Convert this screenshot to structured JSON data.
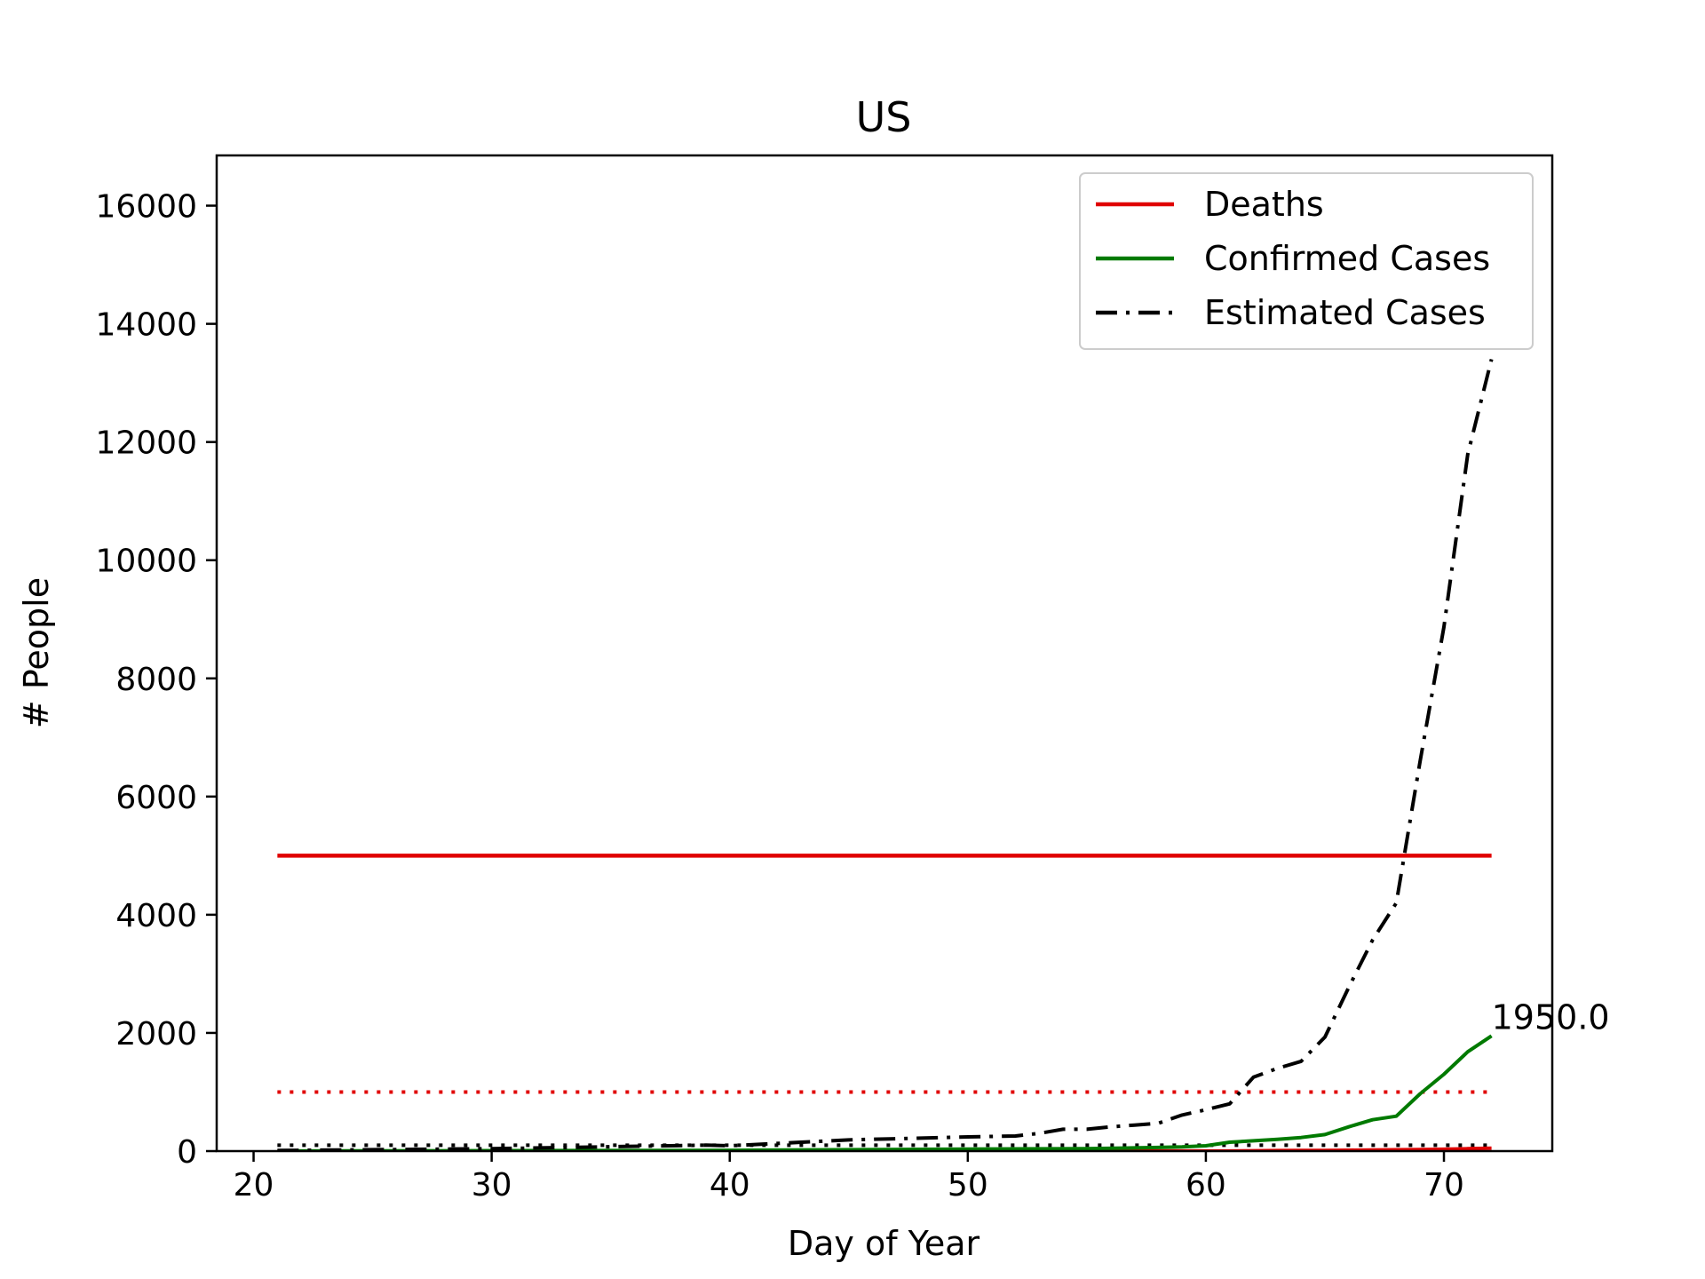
{
  "chart_data": {
    "type": "line",
    "title": "US",
    "xlabel": "Day of Year",
    "ylabel": "# People",
    "xlim": [
      18.45,
      74.55
    ],
    "ylim": [
      0,
      16850
    ],
    "xticks": [
      20,
      30,
      40,
      50,
      60,
      70
    ],
    "yticks": [
      0,
      2000,
      4000,
      6000,
      8000,
      10000,
      12000,
      14000,
      16000
    ],
    "grid": false,
    "legend_position": "top-right",
    "series": [
      {
        "name": "Deaths",
        "color": "#e00000",
        "style": "solid",
        "x": [
          21,
          60,
          61,
          62,
          63,
          64,
          65,
          66,
          67,
          68,
          69,
          70,
          71,
          72
        ],
        "y": [
          0,
          1,
          2,
          6,
          9,
          11,
          12,
          15,
          19,
          22,
          26,
          31,
          41,
          50
        ]
      },
      {
        "name": "Confirmed Cases",
        "color": "#007a00",
        "style": "solid",
        "x": [
          21,
          30,
          40,
          50,
          55,
          58,
          59,
          60,
          61,
          62,
          63,
          64,
          65,
          66,
          67,
          68,
          69,
          70,
          71,
          72
        ],
        "y": [
          1,
          8,
          13,
          35,
          40,
          62,
          70,
          90,
          150,
          175,
          200,
          230,
          280,
          410,
          530,
          590,
          970,
          1300,
          1680,
          1950
        ]
      },
      {
        "name": "Estimated Cases",
        "color": "#000000",
        "style": "dashdot",
        "x": [
          21,
          30,
          39,
          40,
          45,
          50,
          52,
          53,
          54,
          55,
          56,
          57,
          58,
          59,
          60,
          61,
          62,
          63,
          64,
          65,
          66,
          67,
          68,
          69,
          70,
          71,
          72
        ],
        "y": [
          10,
          40,
          100,
          90,
          190,
          240,
          255,
          300,
          370,
          370,
          410,
          440,
          470,
          610,
          700,
          800,
          1250,
          1400,
          1520,
          1930,
          2770,
          3570,
          4200,
          6600,
          8870,
          11790,
          13400
        ]
      }
    ],
    "reference_lines": [
      {
        "y": 5000,
        "color": "#e00000",
        "style": "solid",
        "x_from": 21,
        "x_to": 72
      },
      {
        "y": 1000,
        "color": "#e00000",
        "style": "dotted",
        "x_from": 21,
        "x_to": 72
      },
      {
        "y": 100,
        "color": "#000000",
        "style": "dotted",
        "x_from": 21,
        "x_to": 72
      }
    ],
    "annotations": [
      {
        "text": "1950.0",
        "x": 72,
        "y": 1950
      }
    ]
  }
}
